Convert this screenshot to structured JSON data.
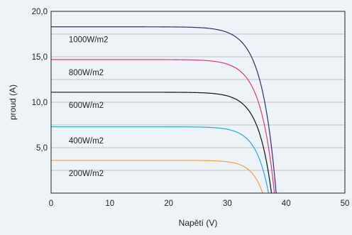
{
  "chart_data": {
    "type": "line",
    "xlabel": "Napětí (V)",
    "ylabel": "proud (A)",
    "xlim": [
      0,
      50
    ],
    "ylim": [
      0,
      20
    ],
    "x_ticks": [
      "0",
      "10",
      "20",
      "30",
      "40",
      "50"
    ],
    "x_tick_values": [
      0,
      10,
      20,
      30,
      40,
      50
    ],
    "y_ticks": [
      "5,0",
      "10,0",
      "15,0",
      "20,0"
    ],
    "y_tick_values": [
      5,
      10,
      15,
      20
    ],
    "grid": "horizontal",
    "series": [
      {
        "name": "1000W/m2",
        "color": "#2b2f6e",
        "isc": 18.3,
        "knee_v": 28.0,
        "voc": 38.3,
        "x": [
          0,
          25,
          28,
          30,
          32,
          34,
          35,
          36,
          37,
          37.5,
          38,
          38.3
        ],
        "y": [
          18.3,
          18.3,
          18.2,
          17.9,
          17.1,
          15.4,
          13.9,
          11.6,
          7.9,
          5.4,
          2.0,
          0
        ]
      },
      {
        "name": "800W/m2",
        "color": "#e8327e",
        "isc": 14.7,
        "knee_v": 28.0,
        "voc": 38.0,
        "x": [
          0,
          25,
          28,
          30,
          32,
          34,
          35,
          36,
          37,
          37.5,
          38
        ],
        "y": [
          14.7,
          14.7,
          14.6,
          14.3,
          13.6,
          11.9,
          10.4,
          8.2,
          4.7,
          2.4,
          0
        ]
      },
      {
        "name": "600W/m2",
        "color": "#111111",
        "isc": 11.1,
        "knee_v": 28.0,
        "voc": 37.5,
        "x": [
          0,
          25,
          28,
          30,
          32,
          34,
          35,
          36,
          36.5,
          37,
          37.5
        ],
        "y": [
          11.1,
          11.1,
          11.0,
          10.7,
          10.0,
          8.3,
          6.8,
          4.4,
          2.9,
          1.4,
          0
        ]
      },
      {
        "name": "400W/m2",
        "color": "#2aa8d4",
        "isc": 7.3,
        "knee_v": 28.0,
        "voc": 37.0,
        "x": [
          0,
          25,
          28,
          30,
          32,
          34,
          35,
          36,
          37
        ],
        "y": [
          7.3,
          7.3,
          7.2,
          6.9,
          6.2,
          4.6,
          3.3,
          1.6,
          0
        ]
      },
      {
        "name": "200W/m2",
        "color": "#f2a23c",
        "isc": 3.6,
        "knee_v": 28.0,
        "voc": 36.0,
        "x": [
          0,
          25,
          28,
          30,
          32,
          33,
          34,
          35,
          36
        ],
        "y": [
          3.6,
          3.6,
          3.5,
          3.3,
          2.7,
          2.3,
          1.6,
          0.9,
          0
        ]
      }
    ],
    "curve_labels": [
      {
        "text": "1000W/m2",
        "x": 3,
        "y": 16.9
      },
      {
        "text": "800W/m2",
        "x": 3,
        "y": 13.3
      },
      {
        "text": "600W/m2",
        "x": 3,
        "y": 9.7
      },
      {
        "text": "400W/m2",
        "x": 3,
        "y": 5.8
      },
      {
        "text": "200W/m2",
        "x": 3,
        "y": 2.2
      }
    ]
  }
}
